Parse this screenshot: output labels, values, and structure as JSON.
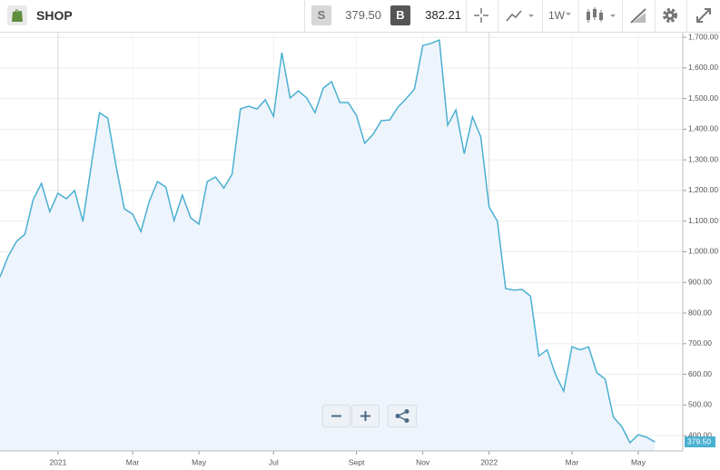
{
  "toolbar": {
    "symbol": "SHOP",
    "sell_label": "S",
    "sell_price": "379.50",
    "buy_label": "B",
    "buy_price": "382.21",
    "interval": "1W"
  },
  "chart_data": {
    "type": "line",
    "color": "#4ab0d2",
    "area_color": "#eef4fb",
    "grid": true,
    "categories": [
      null,
      null,
      null,
      null,
      null,
      null,
      null,
      "2021",
      null,
      null,
      null,
      null,
      null,
      null,
      null,
      null,
      "Mar",
      null,
      null,
      null,
      null,
      null,
      null,
      null,
      "May",
      null,
      null,
      null,
      null,
      null,
      null,
      null,
      null,
      "Jul",
      null,
      null,
      null,
      null,
      null,
      null,
      null,
      null,
      null,
      "Sept",
      null,
      null,
      null,
      null,
      null,
      null,
      null,
      "Nov",
      null,
      null,
      null,
      null,
      null,
      null,
      null,
      "2022",
      null,
      null,
      null,
      null,
      null,
      null,
      null,
      null,
      null,
      "Mar",
      null,
      null,
      null,
      null,
      null,
      null,
      null,
      "May",
      null,
      null
    ],
    "values": [
      918,
      986,
      1034,
      1057,
      1170,
      1223,
      1131,
      1191,
      1173,
      1200,
      1099,
      1280,
      1454,
      1436,
      1280,
      1140,
      1123,
      1066,
      1164,
      1229,
      1211,
      1102,
      1185,
      1111,
      1090,
      1229,
      1244,
      1208,
      1253,
      1466,
      1475,
      1466,
      1496,
      1442,
      1650,
      1502,
      1525,
      1502,
      1454,
      1534,
      1555,
      1487,
      1487,
      1445,
      1354,
      1383,
      1428,
      1430,
      1472,
      1500,
      1531,
      1673,
      1680,
      1691,
      1413,
      1463,
      1320,
      1440,
      1375,
      1146,
      1100,
      880,
      875,
      877,
      855,
      660,
      680,
      600,
      545,
      690,
      680,
      690,
      605,
      585,
      460,
      430,
      377,
      403,
      395,
      379.5
    ],
    "ylim": [
      350,
      1715
    ],
    "yticks": [
      {
        "value": 400,
        "label": "400.00"
      },
      {
        "value": 500,
        "label": "500.00"
      },
      {
        "value": 600,
        "label": "600.00"
      },
      {
        "value": 700,
        "label": "700.00"
      },
      {
        "value": 800,
        "label": "800.00"
      },
      {
        "value": 900,
        "label": "900.00"
      },
      {
        "value": 1000,
        "label": "1,000.00"
      },
      {
        "value": 1100,
        "label": "1,100.00"
      },
      {
        "value": 1200,
        "label": "1,200.00"
      },
      {
        "value": 1300,
        "label": "1,300.00"
      },
      {
        "value": 1400,
        "label": "1,400.00"
      },
      {
        "value": 1500,
        "label": "1,500.00"
      },
      {
        "value": 1600,
        "label": "1,600.00"
      },
      {
        "value": 1700,
        "label": "1,700.00"
      }
    ],
    "last_price": {
      "value": 379.5,
      "label": "379.50"
    }
  }
}
